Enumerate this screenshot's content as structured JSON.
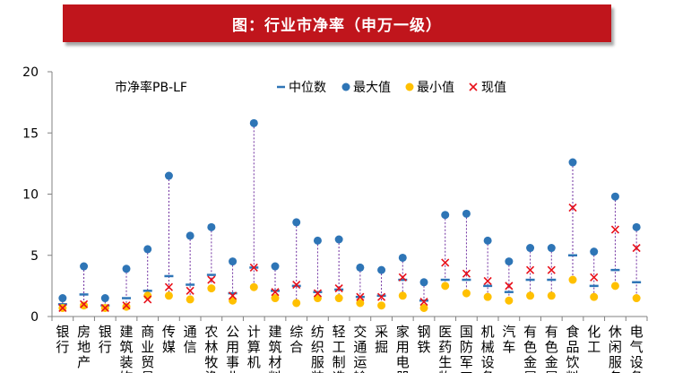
{
  "banner": {
    "title": "图：行业市净率（申万一级）"
  },
  "chart_data": {
    "type": "scatter",
    "title": "市净率PB-LF",
    "ylim": [
      0,
      20
    ],
    "yticks": [
      0,
      5,
      10,
      15,
      20
    ],
    "legend": {
      "median": "中位数",
      "max": "最大值",
      "min": "最小值",
      "current": "现值"
    },
    "colors": {
      "median": "#2e75b6",
      "max": "#2e75b6",
      "min": "#ffc000",
      "current": "#e8101a",
      "range_line": "#7030a0",
      "axis": "#808080"
    },
    "categories": [
      "银行",
      "房地产",
      "银行",
      "建筑装饰",
      "商业贸易",
      "传媒",
      "通信",
      "农林牧渔",
      "公用事业",
      "计算机",
      "建筑材料",
      "综合",
      "纺织服装",
      "轻工制造",
      "交通运输",
      "采掘",
      "家用电器",
      "钢铁",
      "医药生物",
      "国防军工",
      "机械设备",
      "汽车",
      "有色金属",
      "有色金属",
      "食品饮料",
      "化工",
      "休闲服务",
      "电气设备"
    ],
    "max": [
      1.5,
      4.1,
      1.5,
      3.9,
      5.5,
      11.5,
      6.6,
      7.3,
      4.5,
      15.8,
      4.1,
      7.7,
      6.2,
      6.3,
      4.0,
      3.8,
      4.8,
      2.8,
      8.3,
      8.4,
      6.2,
      4.5,
      5.6,
      5.6,
      12.6,
      5.3,
      9.8,
      7.3
    ],
    "min": [
      0.7,
      0.9,
      0.7,
      0.8,
      1.7,
      1.7,
      1.4,
      2.3,
      1.3,
      2.4,
      1.5,
      1.1,
      1.5,
      1.5,
      1.1,
      0.9,
      1.7,
      0.7,
      2.5,
      1.9,
      1.6,
      1.3,
      1.7,
      1.7,
      3.0,
      1.6,
      2.5,
      1.5
    ],
    "median": [
      1.0,
      1.8,
      0.9,
      1.5,
      2.1,
      3.3,
      2.6,
      3.4,
      1.9,
      4.0,
      2.1,
      2.5,
      2.0,
      2.2,
      1.6,
      1.7,
      3.0,
      1.3,
      3.0,
      3.0,
      2.5,
      2.0,
      3.0,
      3.0,
      5.0,
      2.5,
      3.8,
      2.8
    ],
    "current": [
      0.7,
      1.0,
      0.7,
      0.9,
      1.4,
      2.4,
      2.1,
      3.0,
      1.7,
      4.0,
      2.0,
      2.6,
      1.9,
      2.3,
      1.6,
      1.6,
      3.2,
      1.2,
      4.4,
      3.5,
      2.9,
      2.5,
      3.8,
      3.8,
      8.9,
      3.2,
      7.1,
      5.6
    ]
  }
}
